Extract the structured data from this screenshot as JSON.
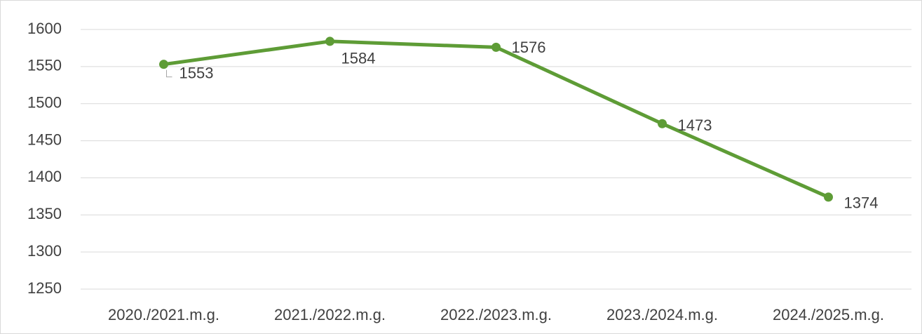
{
  "chart_data": {
    "type": "line",
    "categories": [
      "2020./2021.m.g.",
      "2021./2022.m.g.",
      "2022./2023.m.g.",
      "2023./2024.m.g.",
      "2024./2025.m.g."
    ],
    "series": [
      {
        "color": "#5e9c36",
        "values": [
          1553,
          1584,
          1576,
          1473,
          1374
        ]
      }
    ],
    "ylim": [
      1250,
      1600
    ],
    "yticks": [
      1250,
      1300,
      1350,
      1400,
      1450,
      1500,
      1550,
      1600
    ],
    "grid": true
  }
}
